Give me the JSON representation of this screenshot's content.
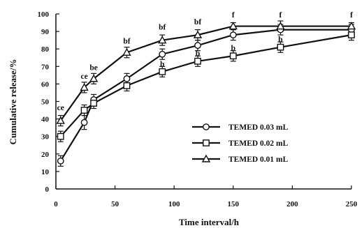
{
  "chart_data": {
    "type": "line",
    "title": "",
    "xlabel": "Time interval/h",
    "ylabel": "Cumulative release/%",
    "xlim": [
      0,
      250
    ],
    "ylim": [
      0,
      100
    ],
    "xticks": [
      0,
      50,
      100,
      150,
      200,
      250
    ],
    "yticks": [
      0,
      10,
      20,
      30,
      40,
      50,
      60,
      70,
      80,
      90,
      100
    ],
    "grid": false,
    "legend_position": "center-right",
    "series": [
      {
        "name": "TEMED 0.03 mL",
        "marker": "circle",
        "x": [
          4,
          24,
          32,
          60,
          90,
          120,
          150,
          190,
          250
        ],
        "y": [
          16,
          38,
          51,
          63,
          77,
          82,
          88,
          91,
          91
        ],
        "err": [
          3,
          4,
          3,
          3,
          3,
          3,
          3,
          3,
          3
        ]
      },
      {
        "name": "TEMED 0.02 mL",
        "marker": "square",
        "x": [
          4,
          24,
          32,
          60,
          90,
          120,
          150,
          190,
          250
        ],
        "y": [
          30,
          45,
          49,
          59,
          67,
          73,
          76,
          81,
          88
        ],
        "err": [
          3,
          3,
          3,
          3,
          3,
          3,
          3,
          3,
          3
        ]
      },
      {
        "name": "TEMED 0.01 mL",
        "marker": "triangle",
        "x": [
          4,
          24,
          32,
          60,
          90,
          120,
          150,
          190,
          250
        ],
        "y": [
          39,
          58,
          63,
          78,
          85,
          88,
          93,
          93,
          93
        ],
        "err": [
          3,
          3,
          3,
          3,
          3,
          3,
          2,
          3,
          2
        ]
      }
    ],
    "annotations": [
      {
        "text": "ce",
        "x": 4,
        "y": 45
      },
      {
        "text": "ce",
        "x": 24,
        "y": 63
      },
      {
        "text": "be",
        "x": 32,
        "y": 68
      },
      {
        "text": "bf",
        "x": 60,
        "y": 83
      },
      {
        "text": "bf",
        "x": 90,
        "y": 91
      },
      {
        "text": "bf",
        "x": 120,
        "y": 94
      },
      {
        "text": "f",
        "x": 150,
        "y": 98
      },
      {
        "text": "f",
        "x": 190,
        "y": 98
      },
      {
        "text": "f",
        "x": 250,
        "y": 98
      },
      {
        "text": "b",
        "x": 90,
        "y": 70
      },
      {
        "text": "b",
        "x": 120,
        "y": 76
      },
      {
        "text": "b",
        "x": 150,
        "y": 79
      },
      {
        "text": "b",
        "x": 190,
        "y": 84
      }
    ]
  }
}
